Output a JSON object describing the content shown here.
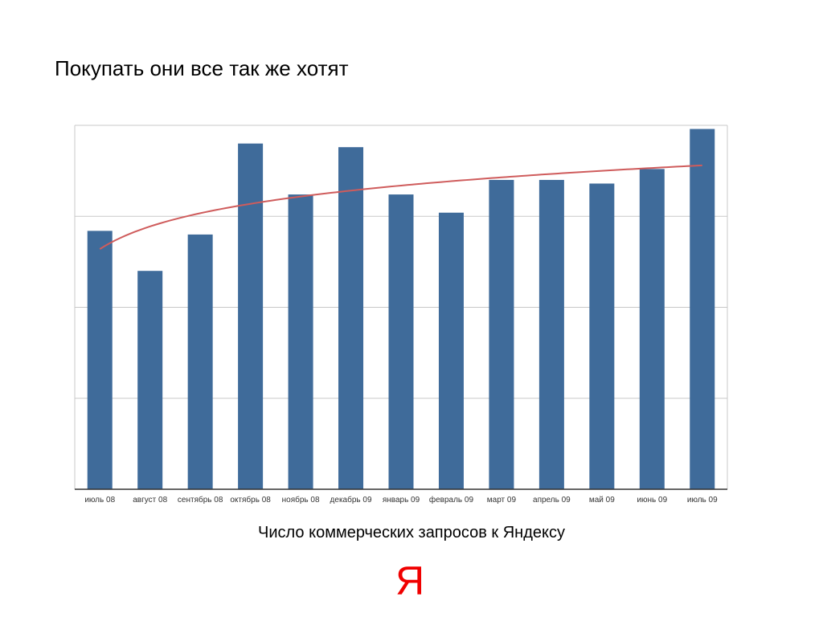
{
  "slide": {
    "title": "Покупать они все так же хотят",
    "caption": "Число коммерческих запросов к Яндексу",
    "logo_text": "Я"
  },
  "colors": {
    "bar": "#3f6b9a",
    "trend": "#cf5c5c",
    "grid": "#c8c8c8",
    "axis": "#333333",
    "logo": "#f00000"
  },
  "chart_data": {
    "type": "bar",
    "categories": [
      "июль 08",
      "август 08",
      "сентябрь 08",
      "октябрь 08",
      "ноябрь 08",
      "декабрь 09",
      "январь 09",
      "февраль 09",
      "март 09",
      "апрель 09",
      "май 09",
      "июнь 09",
      "июль 09"
    ],
    "values": [
      71,
      60,
      70,
      95,
      81,
      94,
      81,
      76,
      85,
      85,
      84,
      88,
      99
    ],
    "trendline": {
      "type": "logarithmic",
      "start": 66,
      "end": 89
    },
    "ylim": [
      0,
      100
    ],
    "gridlines": [
      25,
      50,
      75,
      100
    ],
    "grid": true,
    "title": "",
    "xlabel": "",
    "ylabel": ""
  }
}
